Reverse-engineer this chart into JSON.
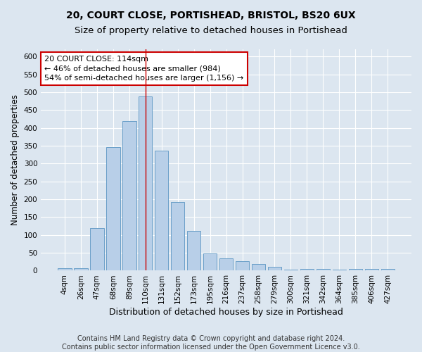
{
  "title": "20, COURT CLOSE, PORTISHEAD, BRISTOL, BS20 6UX",
  "subtitle": "Size of property relative to detached houses in Portishead",
  "xlabel": "Distribution of detached houses by size in Portishead",
  "ylabel": "Number of detached properties",
  "categories": [
    "4sqm",
    "26sqm",
    "47sqm",
    "68sqm",
    "89sqm",
    "110sqm",
    "131sqm",
    "152sqm",
    "173sqm",
    "195sqm",
    "216sqm",
    "237sqm",
    "258sqm",
    "279sqm",
    "300sqm",
    "321sqm",
    "342sqm",
    "364sqm",
    "385sqm",
    "406sqm",
    "427sqm"
  ],
  "values": [
    6,
    7,
    120,
    345,
    418,
    488,
    337,
    193,
    111,
    49,
    34,
    26,
    18,
    10,
    3,
    4,
    5,
    3,
    4,
    5,
    4
  ],
  "bar_color": "#b8cfe8",
  "bar_edge_color": "#6a9fc8",
  "marker_bin_index": 5,
  "annotation_line1": "20 COURT CLOSE: 114sqm",
  "annotation_line2": "← 46% of detached houses are smaller (984)",
  "annotation_line3": "54% of semi-detached houses are larger (1,156) →",
  "annotation_box_color": "#ffffff",
  "annotation_box_edge_color": "#cc0000",
  "vline_color": "#cc0000",
  "footnote1": "Contains HM Land Registry data © Crown copyright and database right 2024.",
  "footnote2": "Contains public sector information licensed under the Open Government Licence v3.0.",
  "background_color": "#dce6f0",
  "plot_background_color": "#dce6f0",
  "ylim": [
    0,
    620
  ],
  "yticks": [
    0,
    50,
    100,
    150,
    200,
    250,
    300,
    350,
    400,
    450,
    500,
    550,
    600
  ],
  "title_fontsize": 10,
  "subtitle_fontsize": 9.5,
  "xlabel_fontsize": 9,
  "ylabel_fontsize": 8.5,
  "tick_fontsize": 7.5,
  "annotation_fontsize": 8,
  "footnote_fontsize": 7
}
